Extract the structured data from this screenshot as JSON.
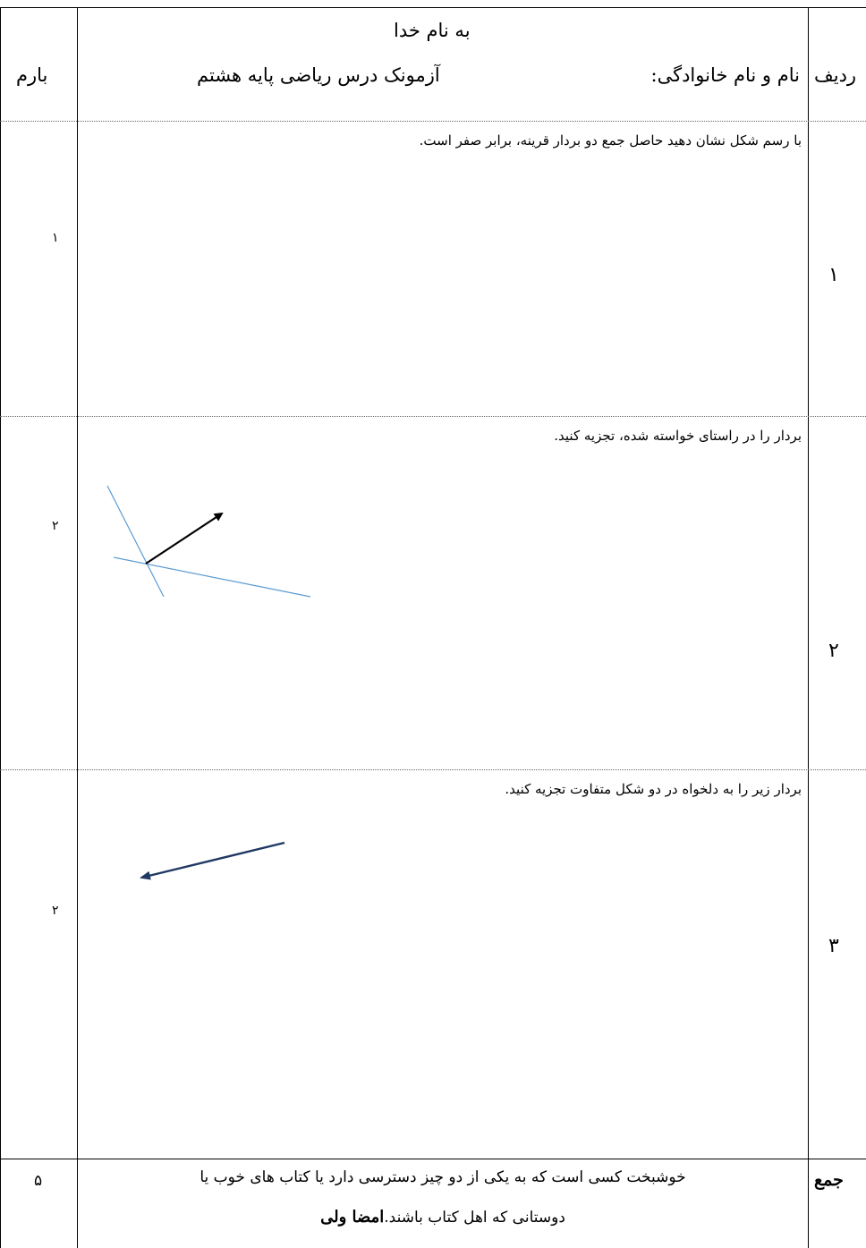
{
  "header": {
    "line1": "به نام خدا",
    "col_score": "بارم",
    "col_row": "ردیف",
    "exam_title": "آزمونک درس ریاضی پایه هشتم",
    "name_label": "نام و نام خانوادگی:"
  },
  "questions": [
    {
      "row": "۱",
      "score": "۱",
      "text": "با رسم شکل نشان دهید حاصل جمع دو بردار قرینه، برابر صفر است."
    },
    {
      "row": "۲",
      "score": "۲",
      "text": "بردار را در راستای خواسته شده، تجزیه کنید."
    },
    {
      "row": "۳",
      "score": "۲",
      "text": "بردار زیر را به دلخواه در دو شکل متفاوت تجزیه کنید."
    }
  ],
  "footer": {
    "total_label": "جمع",
    "total_score": "۵",
    "quote_line1": "خوشبخت کسی است که به یکی از دو چیز دسترسی دارد یا کتاب های خوب یا",
    "quote_line2": "دوستانی که اهل کتاب باشند.",
    "quote_author": "امضا ولی"
  },
  "colors": {
    "border": "#000000",
    "guide_lines": "#5b9bd5",
    "vector_q3": "#1f3864"
  }
}
